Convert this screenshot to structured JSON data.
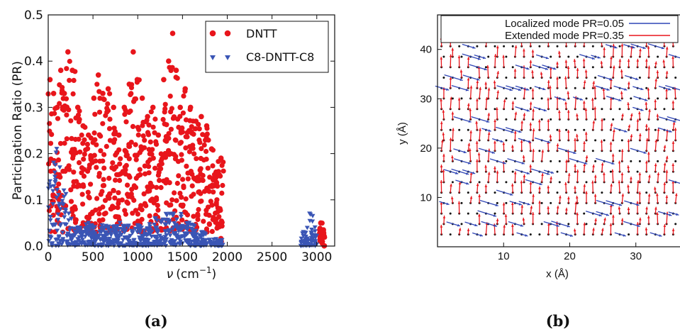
{
  "chart_data": [
    {
      "panel_label": "(a)",
      "type": "scatter",
      "xlabel_symbol": "ν",
      "xlabel_unit": "(cm",
      "xlabel_exp": "−1",
      "xlabel_close": ")",
      "ylabel": "Participation Ratio (PR)",
      "xlim": [
        0,
        3200
      ],
      "ylim": [
        0,
        0.5
      ],
      "xticks": [
        0,
        500,
        1000,
        1500,
        2000,
        2500,
        3000
      ],
      "yticks": [
        0.0,
        0.1,
        0.2,
        0.3,
        0.4,
        0.5
      ],
      "ytick_labels": [
        "0.0",
        "0.1",
        "0.2",
        "0.3",
        "0.4",
        "0.5"
      ],
      "grid": false,
      "legend_position": "top-right",
      "colors": {
        "DNTT": "#e8151b",
        "C8-DNTT-C8": "#3a55b5"
      },
      "series": [
        {
          "name": "DNTT",
          "marker": "circle",
          "bands": [
            [
              0,
              40,
              0.02,
              0.36
            ],
            [
              40,
              80,
              0.02,
              0.33
            ],
            [
              80,
              120,
              0.02,
              0.3
            ],
            [
              120,
              160,
              0.03,
              0.38
            ],
            [
              160,
              200,
              0.03,
              0.33
            ],
            [
              200,
              240,
              0.03,
              0.42
            ],
            [
              240,
              300,
              0.03,
              0.38
            ],
            [
              300,
              360,
              0.03,
              0.3
            ],
            [
              360,
              420,
              0.03,
              0.26
            ],
            [
              420,
              480,
              0.02,
              0.24
            ],
            [
              480,
              540,
              0.02,
              0.32
            ],
            [
              540,
              580,
              0.03,
              0.37
            ],
            [
              580,
              640,
              0.03,
              0.33
            ],
            [
              640,
              700,
              0.03,
              0.34
            ],
            [
              700,
              760,
              0.03,
              0.3
            ],
            [
              760,
              820,
              0.03,
              0.24
            ],
            [
              820,
              880,
              0.03,
              0.3
            ],
            [
              880,
              930,
              0.03,
              0.35
            ],
            [
              930,
              970,
              0.03,
              0.42
            ],
            [
              970,
              1020,
              0.03,
              0.36
            ],
            [
              1020,
              1080,
              0.03,
              0.32
            ],
            [
              1080,
              1140,
              0.03,
              0.28
            ],
            [
              1140,
              1200,
              0.03,
              0.3
            ],
            [
              1200,
              1260,
              0.03,
              0.24
            ],
            [
              1260,
              1320,
              0.03,
              0.36
            ],
            [
              1320,
              1370,
              0.03,
              0.4
            ],
            [
              1370,
              1410,
              0.03,
              0.46
            ],
            [
              1410,
              1450,
              0.03,
              0.38
            ],
            [
              1450,
              1500,
              0.03,
              0.3
            ],
            [
              1500,
              1560,
              0.03,
              0.34
            ],
            [
              1560,
              1620,
              0.03,
              0.3
            ],
            [
              1620,
              1680,
              0.03,
              0.27
            ],
            [
              1680,
              1740,
              0.03,
              0.28
            ],
            [
              1740,
              1800,
              0.03,
              0.26
            ],
            [
              1800,
              1850,
              0.03,
              0.21
            ],
            [
              1850,
              1900,
              0.03,
              0.16
            ],
            [
              1900,
              1960,
              0.01,
              0.19
            ],
            [
              3030,
              3060,
              0.0,
              0.05
            ],
            [
              3060,
              3090,
              0.0,
              0.035
            ]
          ]
        },
        {
          "name": "C8-DNTT-C8",
          "marker": "triangle",
          "bands": [
            [
              0,
              40,
              0.0,
              0.14
            ],
            [
              40,
              80,
              0.0,
              0.18
            ],
            [
              80,
              110,
              0.0,
              0.21
            ],
            [
              110,
              150,
              0.0,
              0.17
            ],
            [
              150,
              200,
              0.0,
              0.12
            ],
            [
              200,
              260,
              0.0,
              0.07
            ],
            [
              260,
              400,
              0.0,
              0.04
            ],
            [
              400,
              500,
              0.0,
              0.05
            ],
            [
              500,
              700,
              0.0,
              0.045
            ],
            [
              700,
              900,
              0.0,
              0.05
            ],
            [
              900,
              1100,
              0.0,
              0.045
            ],
            [
              1100,
              1300,
              0.0,
              0.06
            ],
            [
              1300,
              1500,
              0.0,
              0.07
            ],
            [
              1500,
              1650,
              0.0,
              0.05
            ],
            [
              1650,
              1800,
              0.0,
              0.03
            ],
            [
              1800,
              1950,
              0.0,
              0.015
            ],
            [
              2820,
              2880,
              0.0,
              0.03
            ],
            [
              2880,
              2960,
              0.0,
              0.07
            ],
            [
              2960,
              3000,
              0.0,
              0.04
            ]
          ]
        }
      ]
    },
    {
      "panel_label": "(b)",
      "type": "vector-field",
      "xlabel": "x (Å)",
      "ylabel": "y (Å)",
      "xlim": [
        0,
        37
      ],
      "ylim": [
        0,
        47
      ],
      "xticks": [
        10,
        20,
        30
      ],
      "yticks": [
        10,
        20,
        30,
        40
      ],
      "grid": false,
      "legend_position": "top",
      "colors": {
        "localized": "#2f45b5",
        "extended": "#e8151b",
        "atom": "#111111"
      },
      "series": [
        {
          "name": "Localized mode PR=0.05",
          "color": "#2f45b5"
        },
        {
          "name": "Extended mode PR=0.35",
          "color": "#e8151b"
        }
      ]
    }
  ]
}
